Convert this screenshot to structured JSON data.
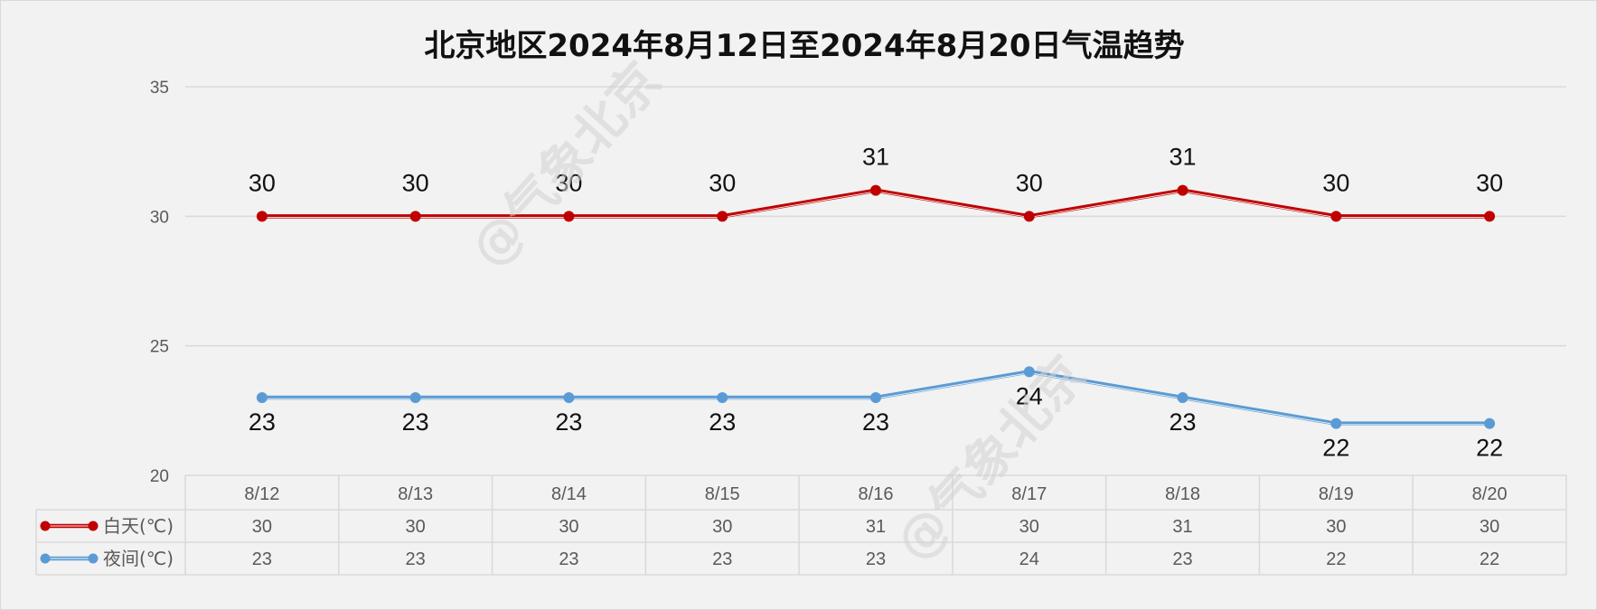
{
  "chart_data": {
    "type": "line",
    "title": "北京地区2024年8月12日至2024年8月20日气温趋势",
    "categories": [
      "8/12",
      "8/13",
      "8/14",
      "8/15",
      "8/16",
      "8/17",
      "8/18",
      "8/19",
      "8/20"
    ],
    "series": [
      {
        "name": "白天(℃)",
        "color": "#c00000",
        "values": [
          30,
          30,
          30,
          30,
          31,
          30,
          31,
          30,
          30
        ]
      },
      {
        "name": "夜间(℃)",
        "color": "#5b9bd5",
        "values": [
          23,
          23,
          23,
          23,
          23,
          24,
          23,
          22,
          22
        ]
      }
    ],
    "yticks": [
      20,
      25,
      30,
      35
    ],
    "ylim": [
      20,
      35
    ],
    "grid": true,
    "data_table": true,
    "watermark": "@气象北京"
  }
}
